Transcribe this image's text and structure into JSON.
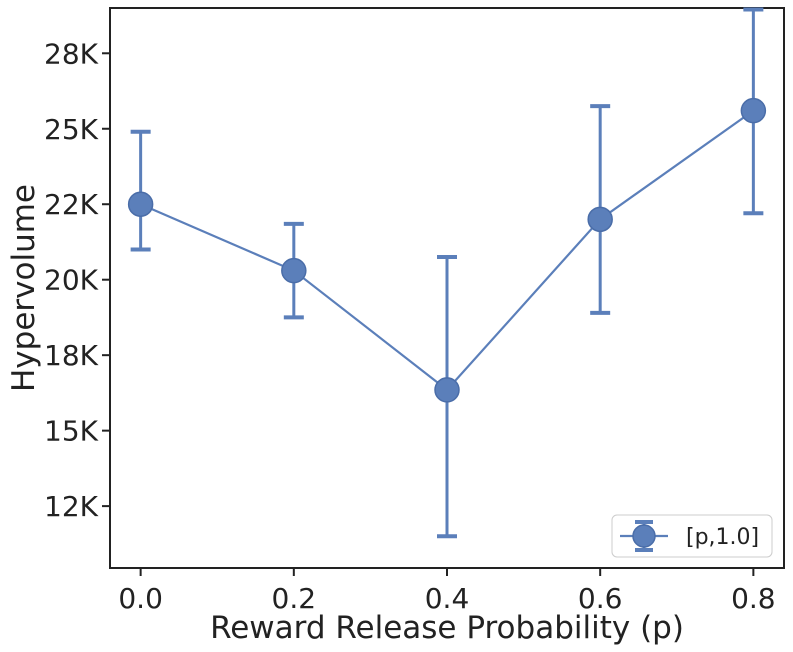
{
  "chart_data": {
    "type": "line",
    "title": "",
    "xlabel": "Reward Release Probability (p)",
    "ylabel": "Hypervolume",
    "x": [
      0.0,
      0.2,
      0.4,
      0.6,
      0.8
    ],
    "x_tick_labels": [
      "0.0",
      "0.2",
      "0.4",
      "0.6",
      "0.8"
    ],
    "xlim": [
      -0.04,
      0.84
    ],
    "y_ticks": [
      12500,
      15000,
      17500,
      20000,
      22500,
      25000,
      27500
    ],
    "y_tick_labels": [
      "12K",
      "15K",
      "18K",
      "20K",
      "22K",
      "25K",
      "28K"
    ],
    "ylim": [
      10450,
      29000
    ],
    "series": [
      {
        "name": "[p,1.0]",
        "values": [
          22500,
          20300,
          16350,
          22000,
          25600
        ],
        "err_low": [
          21000,
          18750,
          11500,
          18900,
          22200
        ],
        "err_high": [
          24900,
          21850,
          20750,
          25750,
          28950
        ],
        "color": "#5b7fba"
      }
    ],
    "legend": {
      "position": "bottom-right",
      "label": "[p,1.0]"
    },
    "grid": false
  }
}
